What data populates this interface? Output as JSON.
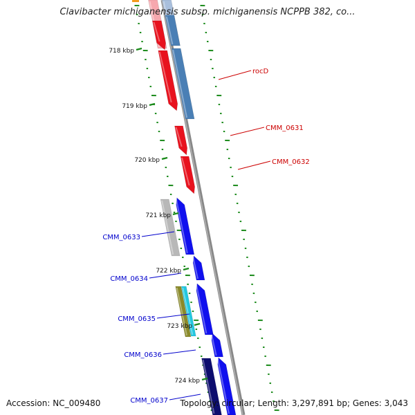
{
  "title": "Clavibacter michiganensis subsp. michiganensis NCPPB 382, co...",
  "footer": {
    "accession": "Accession: NC_009480",
    "summary": "Topology: circular; Length: 3,297,891 bp; Genes: 3,043"
  },
  "kbp_labels": [
    "718 kbp",
    "719 kbp",
    "720 kbp",
    "721 kbp",
    "722 kbp",
    "723 kbp",
    "724 kbp"
  ],
  "gene_labels": {
    "right": [
      "rocD",
      "CMM_0631",
      "CMM_0632"
    ],
    "left": [
      "CMM_0633",
      "CMM_0634",
      "CMM_0635",
      "CMM_0636",
      "CMM_0637"
    ]
  },
  "colors": {
    "red": "#e8121e",
    "light_red": "#f7a8ae",
    "steel_blue": "#4a7fb5",
    "blue": "#1010ee",
    "navy": "#0d0d6e",
    "gray": "#b8b8b8",
    "olive": "#8a8a2a",
    "cyan": "#22c8e0",
    "label_red": "#cc0000",
    "label_blue": "#0000cc",
    "backbone": "#888888",
    "gc_tick": "#1a8a1a"
  }
}
